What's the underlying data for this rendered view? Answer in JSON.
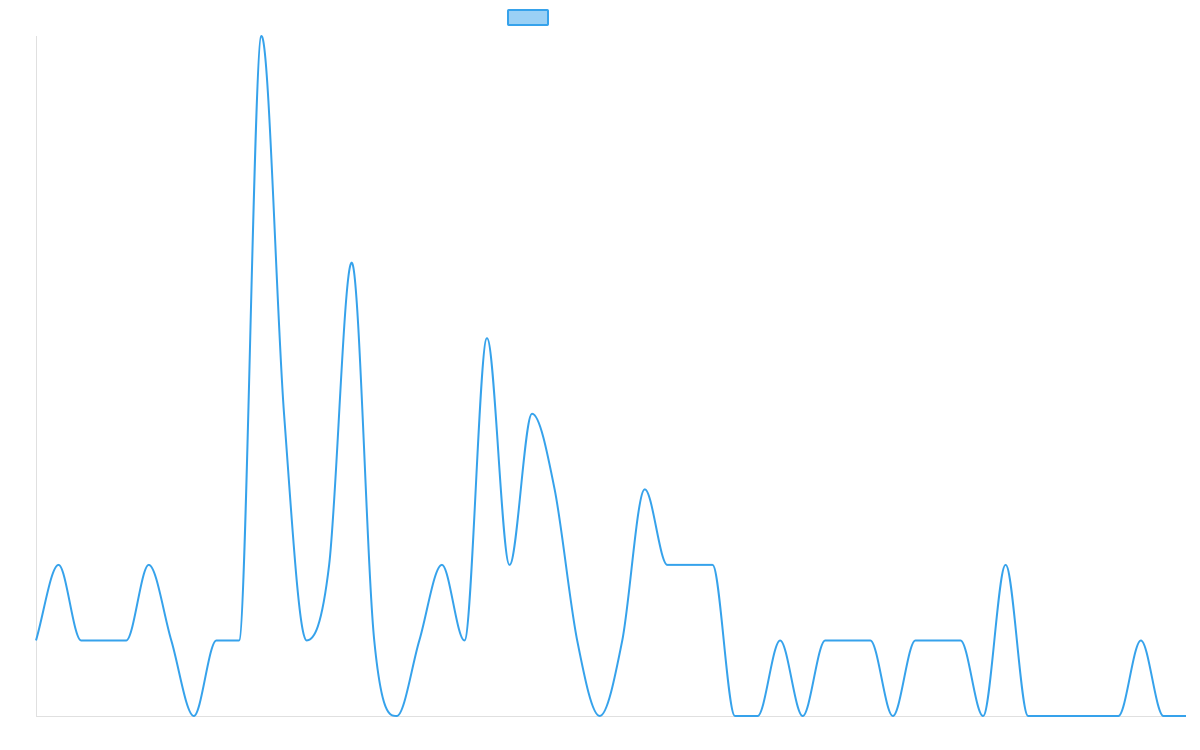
{
  "chart_data": {
    "type": "line",
    "title": "",
    "xlabel": "",
    "ylabel": "",
    "grid": false,
    "legend": {
      "placement": "top-center",
      "entries": [
        {
          "name": ""
        }
      ]
    },
    "ylim": [
      0,
      9
    ],
    "x": [
      0,
      1,
      2,
      3,
      4,
      5,
      6,
      7,
      8,
      9,
      10,
      11,
      12,
      13,
      14,
      15,
      16,
      17,
      18,
      19,
      20,
      21,
      22,
      23,
      24,
      25,
      26,
      27,
      28,
      29,
      30,
      31,
      32,
      33,
      34,
      35,
      36,
      37,
      38,
      39,
      40,
      41,
      42,
      43,
      44,
      45,
      46,
      47,
      48,
      49,
      50,
      51
    ],
    "series": [
      {
        "name": "",
        "values": [
          1,
          2,
          1,
          1,
          1,
          2,
          1,
          0,
          1,
          1,
          9,
          4,
          1,
          2,
          6,
          1,
          0,
          1,
          2,
          1,
          5,
          2,
          4,
          3,
          1,
          0,
          1,
          3,
          2,
          2,
          2,
          0,
          0,
          1,
          0,
          1,
          1,
          1,
          0,
          1,
          1,
          1,
          0,
          2,
          0,
          0,
          0,
          0,
          0,
          1,
          0,
          0
        ]
      }
    ],
    "colors": {
      "line": "#36a2eb",
      "legend_fill": "#9ad0f5",
      "axis": "#e0e0e0"
    }
  }
}
